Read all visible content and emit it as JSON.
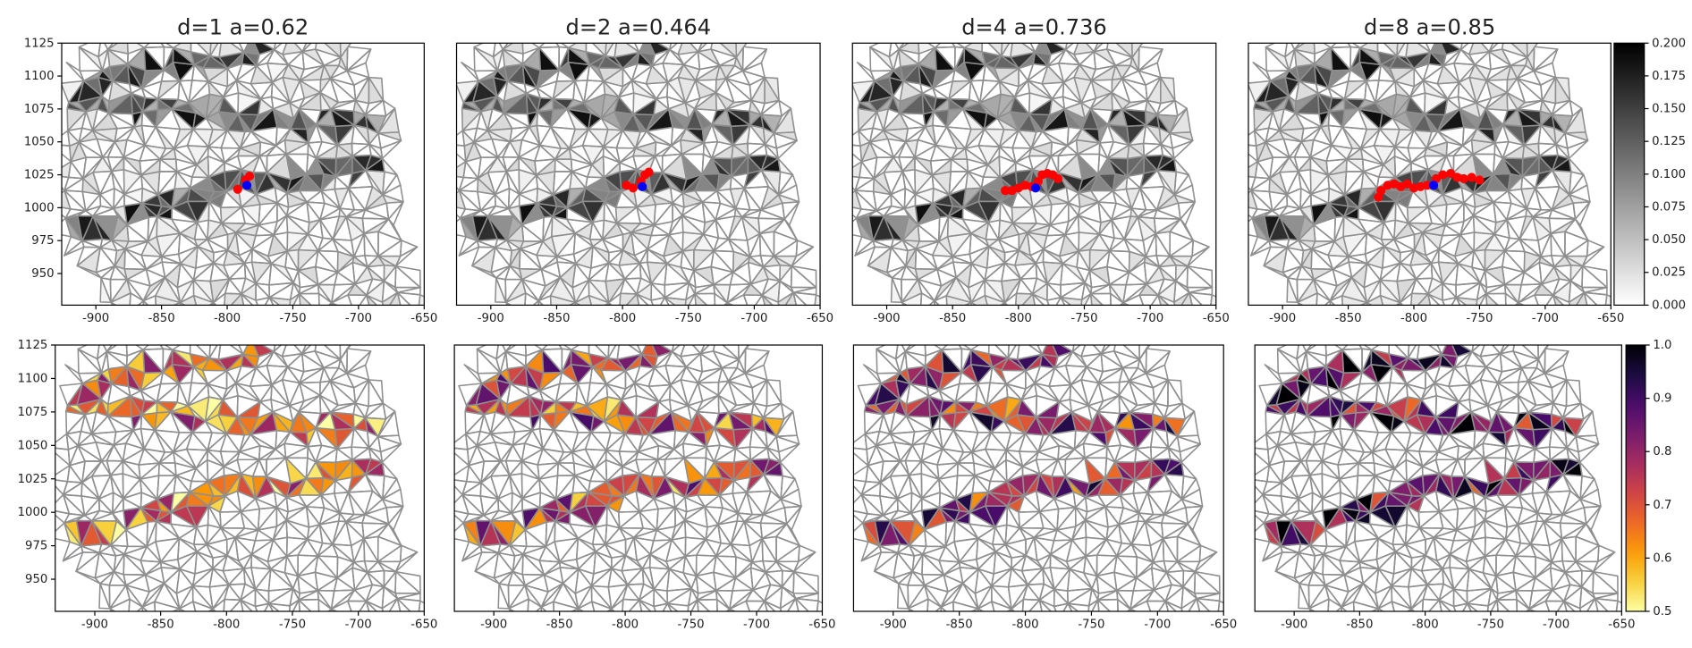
{
  "chart_data": [
    {
      "type": "mesh",
      "title": "d=1 a=0.62",
      "colormap": "gray_r",
      "xlim": [
        -926,
        -650
      ],
      "ylim": [
        926,
        1125
      ],
      "xticks": [
        -900,
        -850,
        -800,
        -750,
        -700,
        -650
      ],
      "yticks": [
        950,
        975,
        1000,
        1025,
        1050,
        1075,
        1100,
        1125
      ],
      "markers": [
        {
          "color": "red",
          "x": [
            -792,
            -786,
            -783
          ],
          "y": [
            1014,
            1021,
            1024
          ]
        },
        {
          "color": "blue",
          "x": [
            -785
          ],
          "y": [
            1017
          ]
        }
      ]
    },
    {
      "type": "mesh",
      "title": "d=2 a=0.464",
      "colormap": "gray_r",
      "xlim": [
        -926,
        -650
      ],
      "ylim": [
        926,
        1125
      ],
      "xticks": [
        -900,
        -850,
        -800,
        -750,
        -700,
        -650
      ],
      "markers": [
        {
          "color": "red",
          "x": [
            -797,
            -792,
            -786,
            -783,
            -780
          ],
          "y": [
            1017,
            1015,
            1020,
            1025,
            1027
          ]
        },
        {
          "color": "blue",
          "x": [
            -785
          ],
          "y": [
            1016
          ]
        }
      ]
    },
    {
      "type": "mesh",
      "title": "d=4 a=0.736",
      "colormap": "gray_r",
      "xlim": [
        -926,
        -650
      ],
      "ylim": [
        926,
        1125
      ],
      "xticks": [
        -900,
        -850,
        -800,
        -750,
        -700,
        -650
      ],
      "markers": [
        {
          "color": "red",
          "x": [
            -810,
            -805,
            -800,
            -795,
            -790,
            -785,
            -782,
            -778,
            -774,
            -770
          ],
          "y": [
            1013,
            1013,
            1015,
            1017,
            1016,
            1020,
            1025,
            1026,
            1025,
            1022
          ]
        },
        {
          "color": "blue",
          "x": [
            -787
          ],
          "y": [
            1015
          ]
        }
      ]
    },
    {
      "type": "mesh",
      "title": "d=8 a=0.85",
      "colormap": "gray_r",
      "xlim": [
        -926,
        -650
      ],
      "ylim": [
        926,
        1125
      ],
      "xticks": [
        -900,
        -850,
        -800,
        -750,
        -700,
        -650
      ],
      "markers": [
        {
          "color": "red",
          "x": [
            -827,
            -825,
            -820,
            -815,
            -810,
            -805,
            -800,
            -795,
            -790,
            -783,
            -778,
            -772,
            -767,
            -762,
            -756,
            -750
          ],
          "y": [
            1008,
            1013,
            1017,
            1018,
            1016,
            1018,
            1015,
            1016,
            1017,
            1022,
            1025,
            1026,
            1023,
            1022,
            1023,
            1021
          ]
        },
        {
          "color": "blue",
          "x": [
            -785
          ],
          "y": [
            1017
          ]
        }
      ]
    },
    {
      "type": "colorbar",
      "colormap": "gray_r",
      "ylim": [
        0,
        0.2
      ],
      "yticks": [
        {
          "value": 0,
          "label": "0.000"
        },
        {
          "value": 0.025,
          "label": "0.025"
        },
        {
          "value": 0.05,
          "label": "0.050"
        },
        {
          "value": 0.075,
          "label": "0.075"
        },
        {
          "value": 0.1,
          "label": "0.100"
        },
        {
          "value": 0.125,
          "label": "0.125"
        },
        {
          "value": 0.15,
          "label": "0.150"
        },
        {
          "value": 0.175,
          "label": "0.175"
        },
        {
          "value": 0.2,
          "label": "0.200"
        }
      ]
    },
    {
      "type": "mesh",
      "colormap": "inferno",
      "xlim": [
        -930,
        -650
      ],
      "ylim": [
        926,
        1125
      ],
      "xticks": [
        -900,
        -850,
        -800,
        -750,
        -700,
        -650
      ],
      "yticks": [
        950,
        975,
        1000,
        1025,
        1050,
        1075,
        1100,
        1125
      ]
    },
    {
      "type": "mesh",
      "colormap": "inferno",
      "xlim": [
        -930,
        -650
      ],
      "ylim": [
        926,
        1125
      ],
      "xticks": [
        -900,
        -850,
        -800,
        -750,
        -700,
        -650
      ]
    },
    {
      "type": "mesh",
      "colormap": "inferno",
      "xlim": [
        -930,
        -650
      ],
      "ylim": [
        926,
        1125
      ],
      "xticks": [
        -900,
        -850,
        -800,
        -750,
        -700,
        -650
      ]
    },
    {
      "type": "mesh",
      "colormap": "inferno",
      "xlim": [
        -930,
        -650
      ],
      "ylim": [
        926,
        1125
      ],
      "xticks": [
        -900,
        -850,
        -800,
        -750,
        -700,
        -650
      ]
    },
    {
      "type": "colorbar",
      "colormap": "inferno",
      "ylim": [
        0.5,
        1
      ],
      "yticks": [
        0.5,
        0.6,
        0.7,
        0.8,
        0.9,
        {
          "value": 1,
          "label": "1.0"
        }
      ]
    }
  ]
}
